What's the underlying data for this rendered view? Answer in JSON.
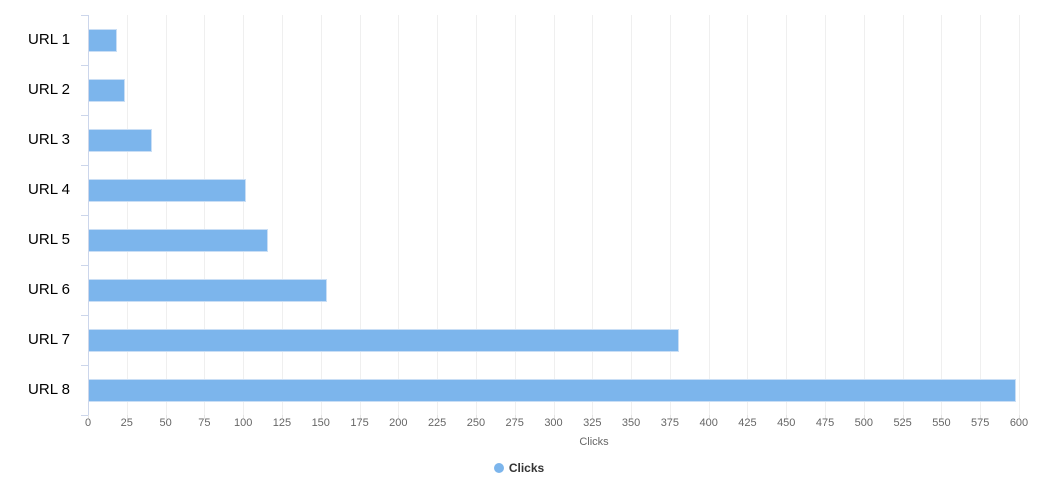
{
  "chart_data": {
    "type": "bar",
    "orientation": "horizontal",
    "title": "",
    "categories": [
      "URL 1",
      "URL 2",
      "URL 3",
      "URL 4",
      "URL 5",
      "URL 6",
      "URL 7",
      "URL 8"
    ],
    "series": [
      {
        "name": "Clicks",
        "values": [
          19,
          24,
          41,
          102,
          116,
          154,
          381,
          598
        ]
      }
    ],
    "value_axis": {
      "label": "Clicks",
      "min": 0,
      "max": 600,
      "tick_interval": 25,
      "tick_labels": [
        "0",
        "25",
        "50",
        "75",
        "100",
        "125",
        "150",
        "175",
        "200",
        "225",
        "250",
        "275",
        "300",
        "325",
        "350",
        "375",
        "400",
        "425",
        "450",
        "475",
        "500",
        "525",
        "550",
        "575",
        "600"
      ]
    },
    "grid": true,
    "legend": {
      "position": "bottom-center",
      "items": [
        {
          "label": "Clicks",
          "color": "#7cb5ec"
        }
      ]
    },
    "colors": {
      "bar_fill": "#7cb5ec",
      "bar_border": "#c9def5",
      "gridline": "#efefef",
      "category_axis_line": "#ccd6eb",
      "category_label": "#000000",
      "tick_label": "#666666",
      "axis_title": "#666666",
      "legend_text": "#333333",
      "background": "#ffffff"
    }
  }
}
